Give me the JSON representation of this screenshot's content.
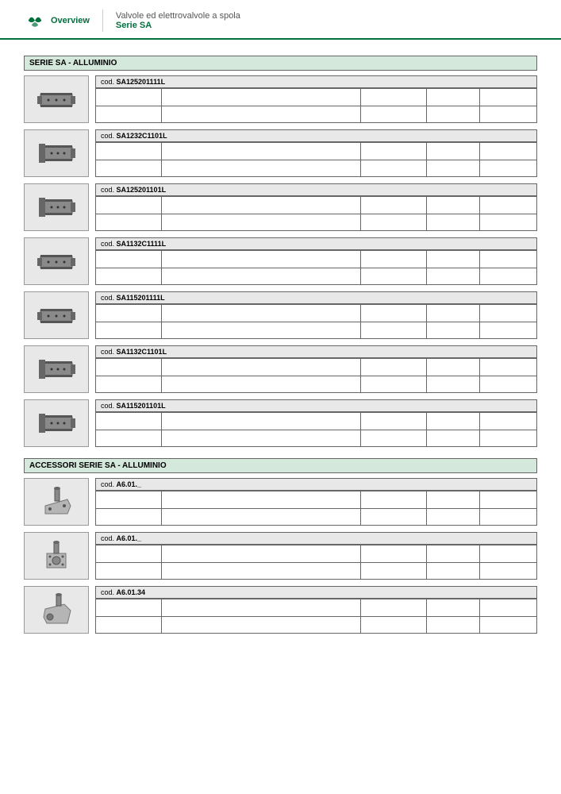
{
  "header": {
    "overview": "Overview",
    "title_line1": "Valvole ed elettrovalvole a spola",
    "title_line2": "Serie SA"
  },
  "sections": [
    {
      "title": "SERIE SA - ALLUMINIO",
      "products": [
        {
          "prefix": "cod. ",
          "code": "SA125201111L",
          "thumb_type": "valve1"
        },
        {
          "prefix": "cod. ",
          "code": "SA1232C1101L",
          "thumb_type": "valve2"
        },
        {
          "prefix": "cod. ",
          "code": "SA125201101L",
          "thumb_type": "valve2"
        },
        {
          "prefix": "cod. ",
          "code": "SA1132C1111L",
          "thumb_type": "valve1"
        },
        {
          "prefix": "cod. ",
          "code": "SA115201111L",
          "thumb_type": "valve1"
        },
        {
          "prefix": "cod. ",
          "code": "SA1132C1101L",
          "thumb_type": "valve2"
        },
        {
          "prefix": "cod. ",
          "code": "SA115201101L",
          "thumb_type": "valve2"
        }
      ]
    },
    {
      "title": "ACCESSORI SERIE SA - ALLUMINIO",
      "products": [
        {
          "prefix": "cod. ",
          "code": "A6.01._",
          "thumb_type": "acc1"
        },
        {
          "prefix": "cod. ",
          "code": "A6.01._",
          "thumb_type": "acc2"
        },
        {
          "prefix": "cod. ",
          "code": "A6.01.34",
          "thumb_type": "acc3"
        }
      ]
    }
  ],
  "colors": {
    "brand_green": "#00703c",
    "section_bg": "#d4e8dc",
    "thumb_bg": "#e8e8e8",
    "border": "#666666"
  }
}
